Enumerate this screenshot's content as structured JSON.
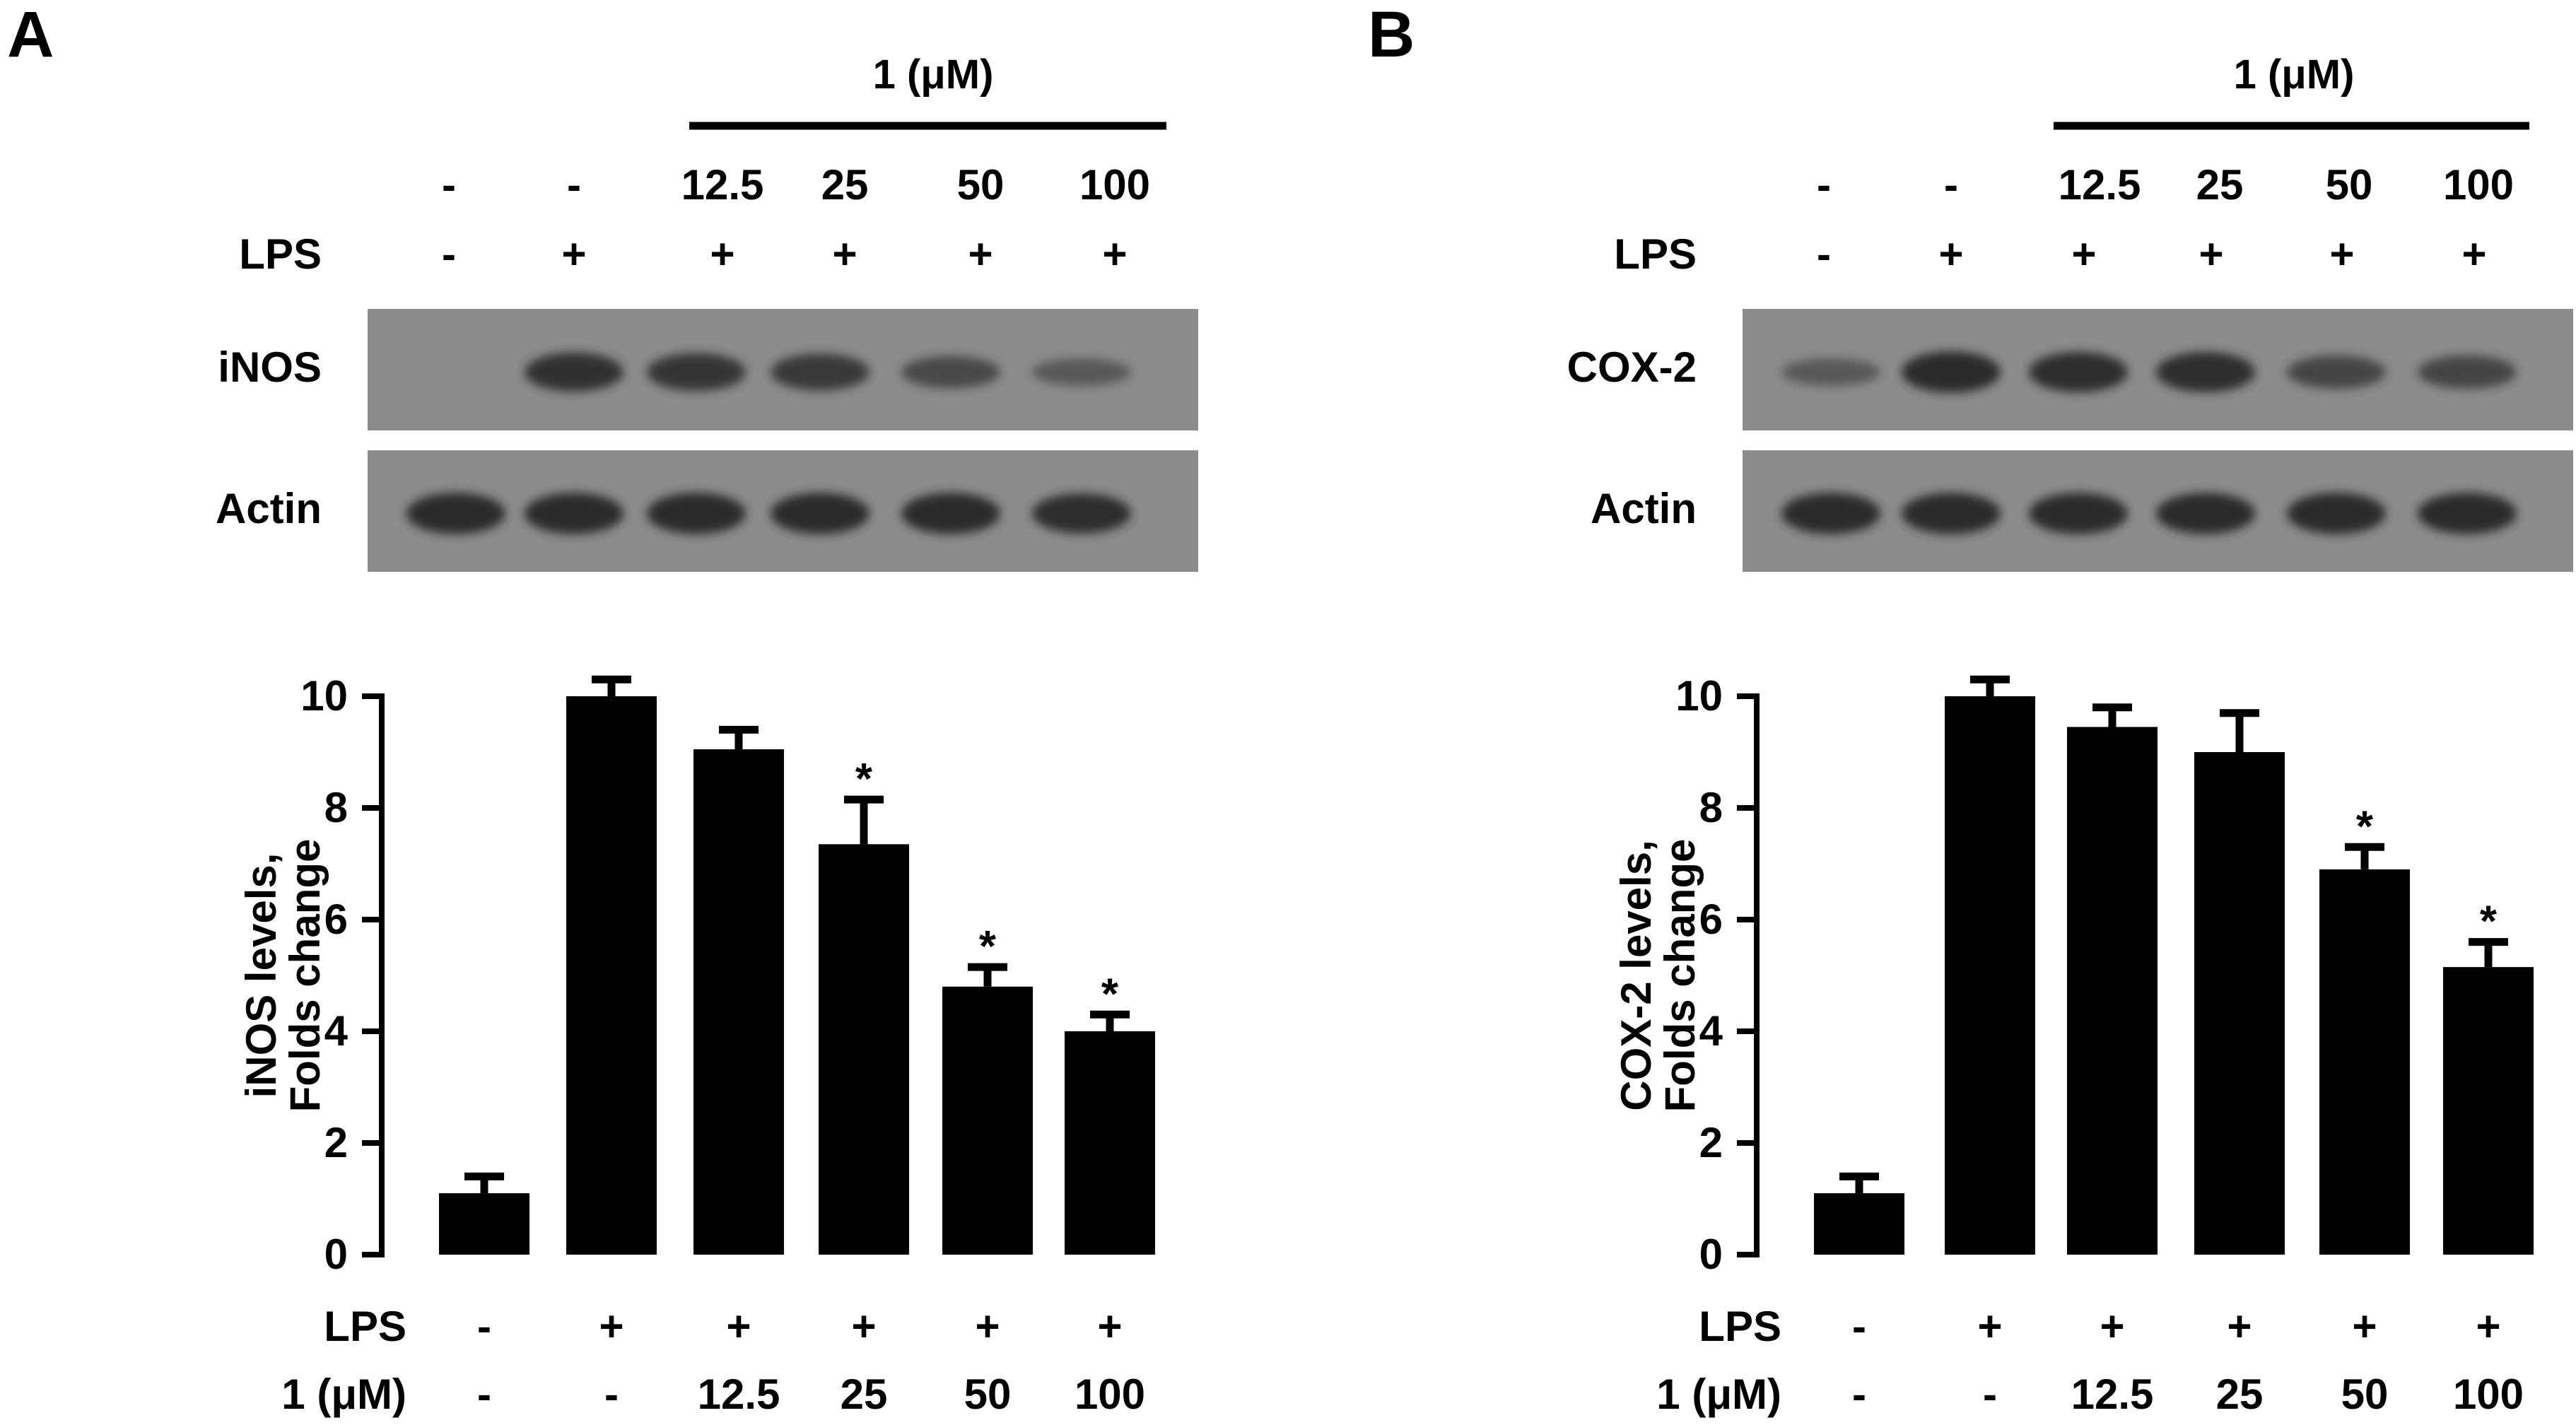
{
  "colors": {
    "bar": "#000000",
    "blot_background": "#8c8c8c",
    "blot_band": "#2c2c2c",
    "text": "#000000"
  },
  "panels": [
    {
      "panel_letter": "A",
      "treatment_label": "1 (μM)",
      "header_doses": [
        "-",
        "-",
        "12.5",
        "25",
        "50",
        "100"
      ],
      "lps_label": "LPS",
      "header_lps": [
        "-",
        "+",
        "+",
        "+",
        "+",
        "+"
      ],
      "blot_rows": [
        {
          "label": "iNOS",
          "band_intensity": [
            0.0,
            0.85,
            0.8,
            0.75,
            0.55,
            0.35
          ]
        },
        {
          "label": "Actin",
          "band_intensity": [
            0.95,
            0.95,
            0.95,
            0.95,
            0.95,
            0.9
          ]
        }
      ],
      "x_rows": [
        {
          "label": "LPS",
          "values": [
            "-",
            "+",
            "+",
            "+",
            "+",
            "+"
          ]
        },
        {
          "label": "1 (μM)",
          "values": [
            "-",
            "-",
            "12.5",
            "25",
            "50",
            "100"
          ]
        }
      ]
    },
    {
      "panel_letter": "B",
      "treatment_label": "1 (μM)",
      "header_doses": [
        "-",
        "-",
        "12.5",
        "25",
        "50",
        "100"
      ],
      "lps_label": "LPS",
      "header_lps": [
        "-",
        "+",
        "+",
        "+",
        "+",
        "+"
      ],
      "blot_rows": [
        {
          "label": "COX-2",
          "band_intensity": [
            0.35,
            0.95,
            0.9,
            0.9,
            0.6,
            0.6
          ]
        },
        {
          "label": "Actin",
          "band_intensity": [
            0.95,
            0.95,
            0.95,
            0.95,
            0.95,
            0.95
          ]
        }
      ],
      "x_rows": [
        {
          "label": "LPS",
          "values": [
            "-",
            "+",
            "+",
            "+",
            "+",
            "+"
          ]
        },
        {
          "label": "1 (μM)",
          "values": [
            "-",
            "-",
            "12.5",
            "25",
            "50",
            "100"
          ]
        }
      ]
    }
  ],
  "chart_data": [
    {
      "type": "bar",
      "ylabel_lines": [
        "iNOS levels,",
        "Folds change"
      ],
      "ylim": [
        0,
        10
      ],
      "yticks": [
        0,
        2,
        4,
        6,
        8,
        10
      ],
      "categories": [
        "-/-",
        "+/-",
        "+/12.5",
        "+/25",
        "+/50",
        "+/100"
      ],
      "values": [
        1.1,
        10.0,
        9.05,
        7.35,
        4.8,
        4.0
      ],
      "errors": [
        0.3,
        0.3,
        0.35,
        0.8,
        0.35,
        0.3
      ],
      "significance": [
        "",
        "",
        "",
        "*",
        "*",
        "*"
      ]
    },
    {
      "type": "bar",
      "ylabel_lines": [
        "COX-2 levels,",
        "Folds change"
      ],
      "ylim": [
        0,
        10
      ],
      "yticks": [
        0,
        2,
        4,
        6,
        8,
        10
      ],
      "categories": [
        "-/-",
        "+/-",
        "+/12.5",
        "+/25",
        "+/50",
        "+/100"
      ],
      "values": [
        1.1,
        10.0,
        9.45,
        9.0,
        6.9,
        5.15
      ],
      "errors": [
        0.3,
        0.3,
        0.35,
        0.7,
        0.4,
        0.45
      ],
      "significance": [
        "",
        "",
        "",
        "",
        "*",
        "*"
      ]
    }
  ]
}
